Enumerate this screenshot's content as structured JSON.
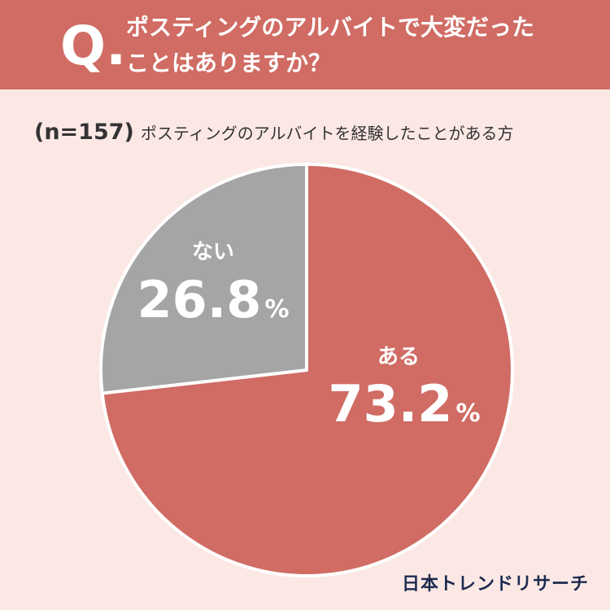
{
  "header": {
    "q_mark": "Q.",
    "question_line1": "ポスティングのアルバイトで大変だった",
    "question_line2": "ことはありますか？",
    "bg_color": "#d06c64"
  },
  "sample": {
    "n_label": "(n=157)",
    "population": "ポスティングのアルバイトを経験したことがある方"
  },
  "chart_data": {
    "type": "pie",
    "start": "12 o'clock",
    "direction": "clockwise",
    "slices": [
      {
        "label": "ある",
        "value": 73.2,
        "value_text": "73.2",
        "unit": "%",
        "color": "#d06c64"
      },
      {
        "label": "ない",
        "value": 26.8,
        "value_text": "26.8",
        "unit": "%",
        "color": "#a5a5a5"
      }
    ]
  },
  "brand": {
    "name": "日本トレンドリサーチ"
  }
}
